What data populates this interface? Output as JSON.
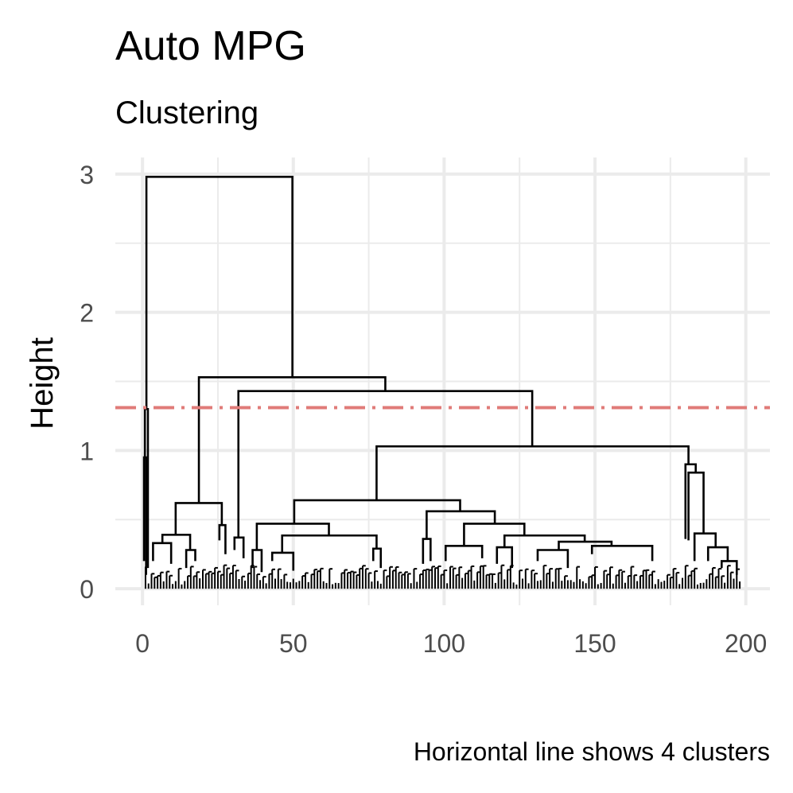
{
  "chart_data": {
    "type": "dendrogram",
    "title": "Auto MPG",
    "subtitle": "Clustering",
    "ylabel": "Height",
    "xlabel": "",
    "caption": "Horizontal line shows 4 clusters",
    "xlim": [
      -9,
      208
    ],
    "ylim": [
      -0.12,
      3.12
    ],
    "x_ticks": [
      0,
      50,
      100,
      150,
      200
    ],
    "x_tick_labels": [
      "0",
      "50",
      "100",
      "150",
      "200"
    ],
    "y_ticks": [
      0,
      1,
      2,
      3
    ],
    "y_tick_labels": [
      "0",
      "1",
      "2",
      "3"
    ],
    "grid": true,
    "n_leaves": 198,
    "cut_height": 1.31,
    "cut_color": "#e07b78",
    "line_color": "#000000",
    "links_columns": [
      "x_left",
      "x_right",
      "height",
      "left_child_height",
      "right_child_height"
    ],
    "links": [
      [
        1.3,
        49.7,
        2.98,
        1.3,
        1.53
      ],
      [
        0.8,
        1.8,
        1.3,
        0.95,
        0.15
      ],
      [
        0.5,
        1.2,
        0.95,
        0.2,
        0.1
      ],
      [
        18.7,
        80.5,
        1.53,
        0.62,
        1.43
      ],
      [
        11,
        26.3,
        0.62,
        0.39,
        0.46
      ],
      [
        6.6,
        15.8,
        0.39,
        0.33,
        0.28
      ],
      [
        3.5,
        9.5,
        0.33,
        0.2,
        0.18
      ],
      [
        14.5,
        17.5,
        0.28,
        0.15,
        0.2
      ],
      [
        25.5,
        27.5,
        0.46,
        0.35,
        0.25
      ],
      [
        31.8,
        129.2,
        1.43,
        0.37,
        1.03
      ],
      [
        30.5,
        33.5,
        0.37,
        0.28,
        0.22
      ],
      [
        77.6,
        181,
        1.03,
        0.64,
        0.9
      ],
      [
        50.3,
        105.3,
        0.64,
        0.47,
        0.56
      ],
      [
        37.9,
        61.8,
        0.47,
        0.28,
        0.385
      ],
      [
        46.3,
        77.6,
        0.385,
        0.26,
        0.29
      ],
      [
        36.5,
        39.5,
        0.28,
        0.15,
        0.12
      ],
      [
        43,
        50,
        0.26,
        0.2,
        0.13
      ],
      [
        76.5,
        79,
        0.29,
        0.2,
        0.15
      ],
      [
        94.2,
        116.8,
        0.56,
        0.36,
        0.47
      ],
      [
        93,
        95.5,
        0.36,
        0.18,
        0.2
      ],
      [
        106.6,
        126.6,
        0.47,
        0.31,
        0.385
      ],
      [
        100.5,
        112.6,
        0.31,
        0.2,
        0.22
      ],
      [
        120,
        146.6,
        0.385,
        0.3,
        0.34
      ],
      [
        117.5,
        122.5,
        0.3,
        0.18,
        0.15
      ],
      [
        138,
        155.5,
        0.34,
        0.28,
        0.31
      ],
      [
        131,
        141,
        0.28,
        0.2,
        0.15
      ],
      [
        149,
        169,
        0.31,
        0.25,
        0.2
      ],
      [
        180,
        183.4,
        0.9,
        0.36,
        0.84
      ],
      [
        181,
        186,
        0.84,
        0.35,
        0.4
      ],
      [
        183,
        190,
        0.4,
        0.2,
        0.3
      ],
      [
        187.5,
        194,
        0.3,
        0.2,
        0.2
      ],
      [
        192,
        197,
        0.2,
        0.15,
        0.1
      ]
    ]
  }
}
